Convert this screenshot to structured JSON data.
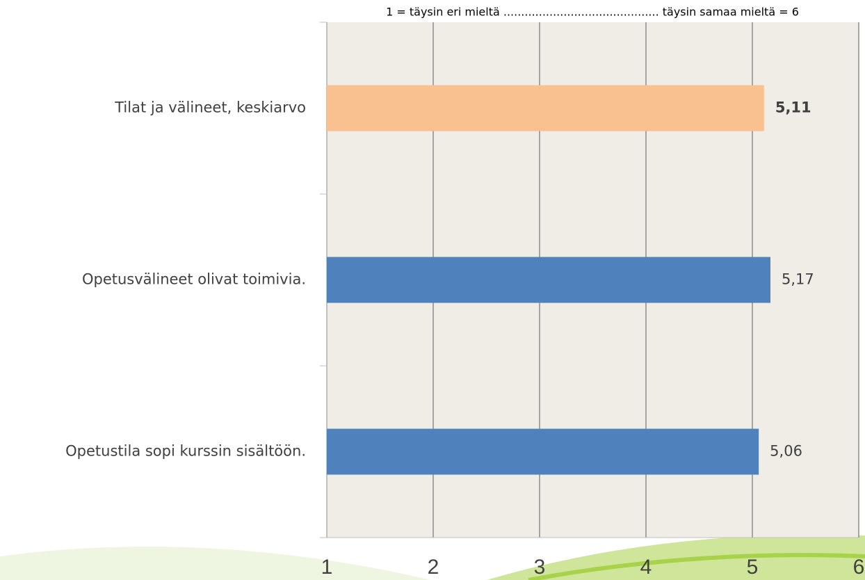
{
  "chart_data": {
    "type": "bar",
    "orientation": "horizontal",
    "title": "1 = täysin eri mieltä ............................................ täysin samaa mieltä = 6",
    "categories": [
      "Tilat ja välineet, keskiarvo",
      "Opetusvälineet olivat toimivia.",
      "Opetustila sopi kurssin sisältöön."
    ],
    "values": [
      5.11,
      5.17,
      5.06
    ],
    "value_labels": [
      "5,11",
      "5,17",
      "5,06"
    ],
    "value_label_bold": [
      true,
      false,
      false
    ],
    "colors": [
      "#f9c090",
      "#4f81bd",
      "#4f81bd"
    ],
    "xlim": [
      1,
      6
    ],
    "xticks": [
      1,
      2,
      3,
      4,
      5,
      6
    ],
    "grid": true
  }
}
